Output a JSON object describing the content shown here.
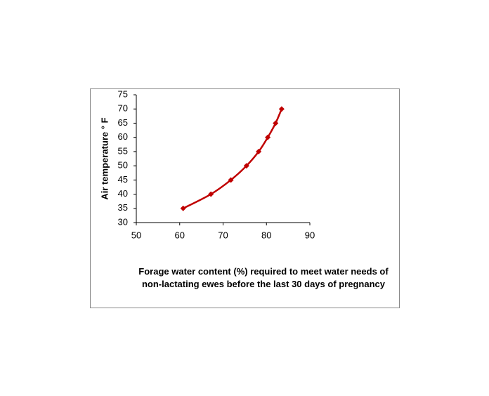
{
  "chart_data": {
    "type": "scatter",
    "x_label": "Forage water content (%) required to meet water needs of non-lactating ewes before the last 30 days of pregnancy",
    "y_label": "Air temperature ° F",
    "x": [
      60.8,
      67.2,
      71.8,
      75.4,
      78.2,
      80.3,
      82.1,
      83.5
    ],
    "values": [
      35,
      40,
      45,
      50,
      55,
      60,
      65,
      70
    ],
    "color": "#c00000",
    "smooth": true,
    "grid": false,
    "xlim": [
      50,
      90
    ],
    "xticks": [
      50,
      60,
      70,
      80,
      90
    ],
    "ylim": [
      30,
      75
    ],
    "yticks": [
      30,
      35,
      40,
      45,
      50,
      55,
      60,
      65,
      70,
      75
    ]
  }
}
